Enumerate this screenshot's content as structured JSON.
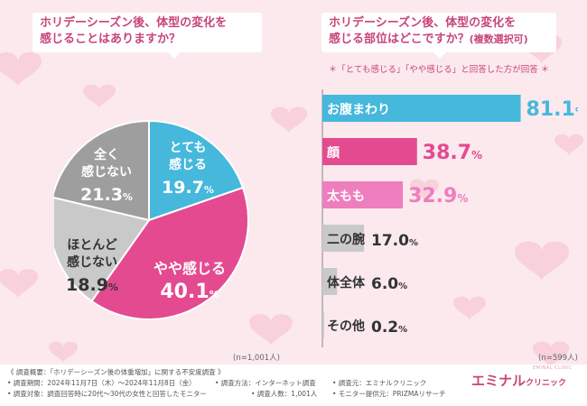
{
  "colors": {
    "background": "#fbe9ee",
    "heart": "#f6c6d3",
    "accent": "#c8457a",
    "blue": "#45b8dc",
    "pink_dark": "#e44a8f",
    "pink_light": "#ee7ebd",
    "gray": "#9e9e9e",
    "gray_light": "#c9c9c9"
  },
  "left_question": {
    "line1": "ホリデーシーズン後、体型の変化を",
    "line2": "感じることはありますか？"
  },
  "right_question": {
    "line1": "ホリデーシーズン後、体型の変化を",
    "line2": "感じる部位はどこですか？",
    "line2_small": "(複数選択可)"
  },
  "right_note": "＊「とても感じる」「やや感じる」と回答した方が回答 ＊",
  "chart_data": [
    {
      "type": "pie",
      "title": "ホリデーシーズン後、体型の変化を感じることはありますか？",
      "unit": "%",
      "slices": [
        {
          "label_lines": [
            "とても",
            "感じる"
          ],
          "value": 19.7,
          "value_text": "19.7",
          "color": "#45b8dc"
        },
        {
          "label_lines": [
            "やや感じる"
          ],
          "value": 40.1,
          "value_text": "40.1",
          "color": "#e44a8f"
        },
        {
          "label_lines": [
            "ほとんど",
            "感じない"
          ],
          "value": 18.9,
          "value_text": "18.9",
          "color": "#c9c9c9"
        },
        {
          "label_lines": [
            "全く",
            "感じない"
          ],
          "value": 21.3,
          "value_text": "21.3",
          "color": "#9e9e9e"
        }
      ],
      "n_label": "(n=1,001人)"
    },
    {
      "type": "bar",
      "title": "ホリデーシーズン後、体型の変化を感じる部位はどこですか？(複数選択可)",
      "orientation": "horizontal",
      "unit": "%",
      "xlim": [
        0,
        100
      ],
      "categories": [
        "お腹まわり",
        "顔",
        "太もも",
        "二の腕",
        "体全体",
        "その他"
      ],
      "values": [
        81.1,
        38.7,
        32.9,
        17.0,
        6.0,
        0.2
      ],
      "value_texts": [
        "81.1",
        "38.7",
        "32.9",
        "17.0",
        "6.0",
        "0.2"
      ],
      "colors": [
        "#45b8dc",
        "#e44a8f",
        "#ee7ebd",
        "#c9c9c9",
        "#c9c9c9",
        "#c9c9c9"
      ],
      "n_label": "(n=599人)"
    }
  ],
  "footer": {
    "summary": "《 調査概要：「ホリデーシーズン後の体重増加」に関する不安度調査 》",
    "period": "• 調査期間：2024年11月7日（木）～2024年11月8日（金）",
    "method": "• 調査方法：インターネット調査",
    "source": "• 調査元：エミナルクリニック",
    "target": "• 調査対象：調査回答時に20代～30代の女性と回答したモニター",
    "people": "• 調査人数：1,001人",
    "provider": "• モニター提供元：PRIZMAリサーチ"
  },
  "logo": {
    "main": "エミナル",
    "small": "クリニック",
    "sub": "EMINAL CLINIC"
  }
}
